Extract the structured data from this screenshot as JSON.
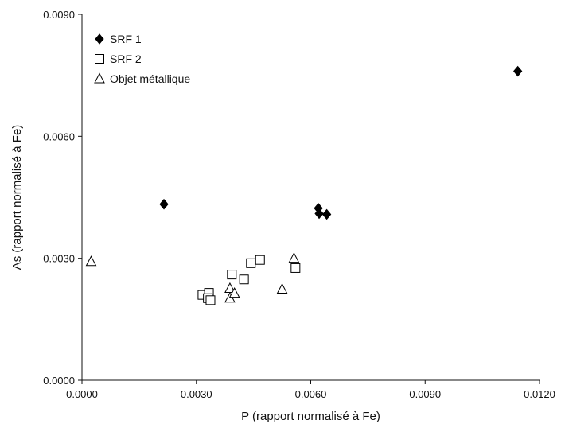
{
  "chart_data": {
    "type": "scatter",
    "xlabel": "P (rapport normalisé à Fe)",
    "ylabel": "As (rapport normalisé à Fe)",
    "xlim": [
      0.0,
      0.012
    ],
    "ylim": [
      0.0,
      0.009
    ],
    "xticks": [
      "0.0000",
      "0.0030",
      "0.0060",
      "0.0090",
      "0.0120"
    ],
    "yticks": [
      "0.0000",
      "0.0030",
      "0.0060",
      "0.0090"
    ],
    "grid": false,
    "legend_position": "top-left",
    "series": [
      {
        "name": "SRF 1",
        "marker": "filled-diamond",
        "color": "#000000",
        "points": [
          [
            0.00215,
            0.00433
          ],
          [
            0.0062,
            0.00423
          ],
          [
            0.00622,
            0.0041
          ],
          [
            0.00642,
            0.00408
          ],
          [
            0.01143,
            0.0076
          ]
        ]
      },
      {
        "name": "SRF 2",
        "marker": "open-square",
        "color": "#000000",
        "points": [
          [
            0.00316,
            0.0021
          ],
          [
            0.00333,
            0.00215
          ],
          [
            0.0033,
            0.00202
          ],
          [
            0.00337,
            0.00197
          ],
          [
            0.00393,
            0.0026
          ],
          [
            0.00425,
            0.00248
          ],
          [
            0.00443,
            0.00288
          ],
          [
            0.00467,
            0.00296
          ],
          [
            0.0056,
            0.00276
          ]
        ]
      },
      {
        "name": "Objet métallique",
        "marker": "open-triangle",
        "color": "#000000",
        "points": [
          [
            0.00024,
            0.00292
          ],
          [
            0.00388,
            0.00226
          ],
          [
            0.00388,
            0.00202
          ],
          [
            0.004,
            0.00214
          ],
          [
            0.00525,
            0.00224
          ],
          [
            0.00556,
            0.003
          ]
        ]
      }
    ]
  }
}
